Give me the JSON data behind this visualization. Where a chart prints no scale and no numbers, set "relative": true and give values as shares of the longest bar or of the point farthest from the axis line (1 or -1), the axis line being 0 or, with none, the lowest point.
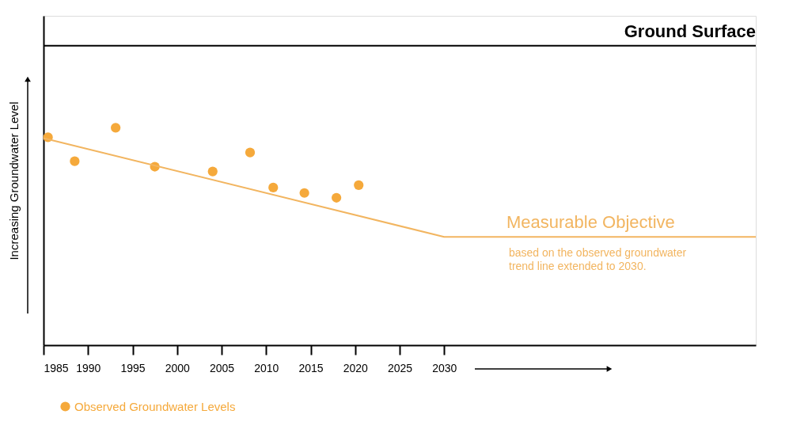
{
  "chart_data": {
    "type": "scatter",
    "relative": true,
    "ylabel": "Increasing Groundwater Level",
    "xlim": [
      1985,
      2065
    ],
    "xticks": [
      1985,
      1990,
      1995,
      2000,
      2005,
      2010,
      2015,
      2020,
      2025,
      2030
    ],
    "series": [
      {
        "name": "Observed Groundwater Levels",
        "marker": "circle",
        "color": "#f5a93b",
        "x": [
          1985.5,
          1988.5,
          1993.1,
          1997.5,
          2004.0,
          2008.2,
          2010.8,
          2014.3,
          2017.9,
          2020.4
        ],
        "values": [
          0.956,
          0.846,
          1,
          0.821,
          0.799,
          0.886,
          0.725,
          0.7,
          0.678,
          0.736
        ]
      },
      {
        "type": "line",
        "marker": "none",
        "color": "#f2b560",
        "x": [
          1985,
          2030,
          2065
        ],
        "values": [
          0.952,
          0.498,
          0.498
        ]
      }
    ],
    "ref_lines": [
      {
        "axis": "y",
        "value": 1.377,
        "label": "Ground Surface",
        "color": "#000000"
      }
    ],
    "annotations": [
      {
        "text": "Measurable Objective",
        "x": 2037,
        "y": 0.498
      },
      "based on the observed groundwater trend line extended to 2030."
    ],
    "legend": "bottom left",
    "grid": false
  }
}
